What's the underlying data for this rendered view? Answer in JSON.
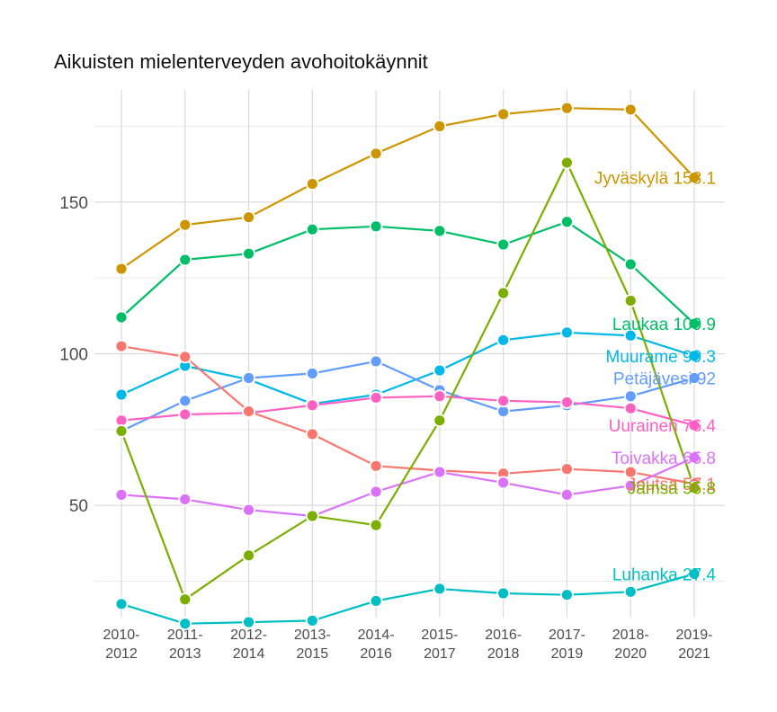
{
  "chart_data": {
    "type": "line",
    "title": "Aikuisten mielenterveyden avohoitokäynnit",
    "xlabel": "",
    "ylabel": "",
    "ylim": [
      13,
      187
    ],
    "yticks": [
      50,
      100,
      150
    ],
    "grid": true,
    "legend": "none (direct labels at line ends)",
    "categories": [
      [
        "2010-",
        "2012"
      ],
      [
        "2011-",
        "2013"
      ],
      [
        "2012-",
        "2014"
      ],
      [
        "2013-",
        "2015"
      ],
      [
        "2014-",
        "2016"
      ],
      [
        "2015-",
        "2017"
      ],
      [
        "2016-",
        "2018"
      ],
      [
        "2017-",
        "2019"
      ],
      [
        "2018-",
        "2020"
      ],
      [
        "2019-",
        "2021"
      ]
    ],
    "series": [
      {
        "name": "Jyväskylä",
        "label": "Jyväskylä 158.1",
        "color": "#CD9600",
        "values": [
          128,
          142.5,
          145,
          156,
          166,
          175,
          179,
          181,
          180.5,
          158.1
        ]
      },
      {
        "name": "Laukaa",
        "label": "Laukaa 109.9",
        "color": "#00BE67",
        "values": [
          112,
          131,
          133,
          141,
          142,
          140.5,
          136,
          143.5,
          129.5,
          109.9
        ]
      },
      {
        "name": "Muurame",
        "label": "Muurame 99.3",
        "color": "#00B8E7",
        "values": [
          86.5,
          96,
          91.5,
          83.5,
          86.5,
          94.5,
          104.5,
          107,
          106,
          99.3
        ]
      },
      {
        "name": "Petäjävesi",
        "label": "Petäjävesi 92",
        "color": "#619CFF",
        "values": [
          74.5,
          84.5,
          92,
          93.5,
          97.5,
          88,
          81,
          83,
          86,
          92
        ]
      },
      {
        "name": "Uurainen",
        "label": "Uurainen 76.4",
        "color": "#FF61C3",
        "values": [
          78,
          80,
          80.5,
          83,
          85.5,
          86,
          84.5,
          84,
          82,
          76.4
        ]
      },
      {
        "name": "Joutsa",
        "label": "Joutsa 57.1",
        "color": "#F8766D",
        "values": [
          102.5,
          99,
          81,
          73.5,
          63,
          61.5,
          60.5,
          62,
          61,
          57.1
        ]
      },
      {
        "name": "Toivakka",
        "label": "Toivakka 65.8",
        "color": "#DB72FB",
        "values": [
          53.5,
          52,
          48.5,
          46.5,
          54.5,
          61,
          57.5,
          53.5,
          56.5,
          65.8
        ]
      },
      {
        "name": "Jämsä",
        "label": "Jämsä 55.8",
        "color": "#7CAE00",
        "values": [
          74.5,
          19,
          33.5,
          46.5,
          43.5,
          78,
          120,
          163,
          117.5,
          55.8
        ]
      },
      {
        "name": "Luhanka",
        "label": "Luhanka 27.4",
        "color": "#00BFC4",
        "values": [
          17.5,
          11,
          11.5,
          12,
          18.5,
          22.5,
          21,
          20.5,
          21.5,
          27.4
        ]
      }
    ]
  }
}
